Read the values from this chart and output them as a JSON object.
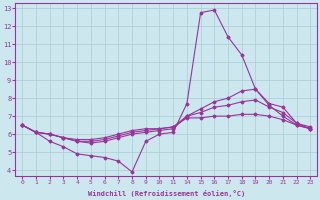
{
  "background_color": "#cce8ee",
  "grid_color": "#aaccd4",
  "line_color": "#993399",
  "xlabel": "Windchill (Refroidissement éolien,°C)",
  "xlim": [
    -0.5,
    21.5
  ],
  "ylim": [
    3.7,
    13.3
  ],
  "yticks": [
    4,
    5,
    6,
    7,
    8,
    9,
    10,
    11,
    12,
    13
  ],
  "xtick_positions": [
    0,
    1,
    2,
    3,
    4,
    5,
    6,
    7,
    8,
    9,
    10,
    11,
    14,
    15,
    16,
    17,
    18,
    19,
    20,
    21,
    22,
    23
  ],
  "xtick_mapped": [
    0,
    1,
    2,
    3,
    4,
    5,
    6,
    7,
    8,
    9,
    10,
    11,
    12,
    13,
    14,
    15,
    16,
    17,
    18,
    19,
    20,
    21
  ],
  "line1_hours": [
    0,
    1,
    2,
    3,
    4,
    5,
    6,
    7,
    8,
    9,
    10,
    11,
    14,
    15,
    16,
    17,
    18,
    19,
    20,
    21,
    22,
    23
  ],
  "line1_y": [
    6.5,
    6.1,
    5.6,
    5.3,
    4.9,
    4.8,
    4.7,
    4.5,
    3.9,
    5.6,
    6.0,
    6.1,
    7.7,
    12.75,
    12.9,
    11.4,
    10.4,
    8.5,
    7.6,
    7.0,
    6.5,
    6.3
  ],
  "line2_hours": [
    0,
    1,
    2,
    3,
    4,
    5,
    6,
    7,
    8,
    9,
    10,
    11,
    14,
    15,
    16,
    17,
    18,
    19,
    20,
    21,
    22,
    23
  ],
  "line2_y": [
    6.5,
    6.1,
    6.0,
    5.8,
    5.6,
    5.5,
    5.6,
    5.8,
    6.0,
    6.1,
    6.2,
    6.3,
    7.0,
    7.4,
    7.8,
    8.0,
    8.4,
    8.5,
    7.7,
    7.5,
    6.6,
    6.4
  ],
  "line3_hours": [
    0,
    1,
    2,
    3,
    4,
    5,
    6,
    7,
    8,
    9,
    10,
    11,
    14,
    15,
    16,
    17,
    18,
    19,
    20,
    21,
    22,
    23
  ],
  "line3_y": [
    6.5,
    6.1,
    6.0,
    5.8,
    5.6,
    5.6,
    5.7,
    5.9,
    6.1,
    6.2,
    6.3,
    6.4,
    7.0,
    7.2,
    7.5,
    7.6,
    7.8,
    7.9,
    7.5,
    7.2,
    6.6,
    6.3
  ],
  "line4_hours": [
    0,
    1,
    2,
    3,
    4,
    5,
    6,
    7,
    8,
    9,
    10,
    11,
    14,
    15,
    16,
    17,
    18,
    19,
    20,
    21,
    22,
    23
  ],
  "line4_y": [
    6.5,
    6.1,
    6.0,
    5.8,
    5.7,
    5.7,
    5.8,
    6.0,
    6.2,
    6.3,
    6.3,
    6.4,
    6.9,
    6.9,
    7.0,
    7.0,
    7.1,
    7.1,
    7.0,
    6.8,
    6.5,
    6.3
  ]
}
